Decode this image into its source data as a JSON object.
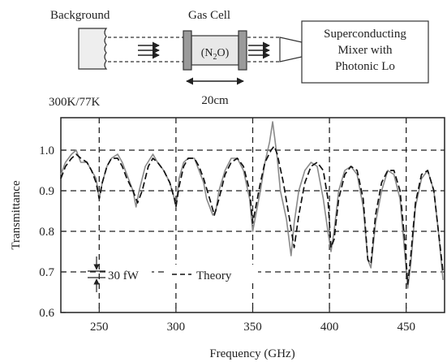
{
  "diagram": {
    "background_label": "Background",
    "background_temp": "300K/77K",
    "gas_cell_label": "Gas Cell",
    "gas_cell_content_main": "(N",
    "gas_cell_content_sub": "2",
    "gas_cell_content_end": "O)",
    "cell_length": "20cm",
    "mixer_line1": "Superconducting",
    "mixer_line2": "Mixer with",
    "mixer_line3": "Photonic Lo"
  },
  "chart_data": {
    "type": "line",
    "xlabel": "Frequency (GHz)",
    "ylabel": "Transmittance",
    "xlim": [
      225,
      475
    ],
    "ylim": [
      0.6,
      1.08
    ],
    "x_ticks": [
      250,
      300,
      350,
      400,
      450
    ],
    "y_ticks": [
      0.6,
      0.7,
      0.8,
      0.9,
      1.0
    ],
    "x_tick_labels": [
      "250",
      "300",
      "350",
      "400",
      "450"
    ],
    "y_tick_labels": [
      "0.6",
      "0.7",
      "0.8",
      "0.9",
      "1.0"
    ],
    "grid": "dashed",
    "scale_bar_label": "30 fW",
    "legend_theory": "Theory",
    "series": [
      {
        "style": "solid-gray",
        "x": [
          225,
          228,
          232,
          235,
          238,
          242,
          245,
          248,
          250,
          252,
          255,
          258,
          262,
          265,
          268,
          272,
          274,
          276,
          280,
          285,
          288,
          292,
          296,
          299,
          300,
          302,
          305,
          308,
          312,
          315,
          318,
          320,
          324,
          326,
          328,
          332,
          336,
          340,
          344,
          348,
          350,
          352,
          355,
          358,
          361,
          363,
          364,
          366,
          368,
          372,
          375,
          377,
          380,
          384,
          388,
          392,
          396,
          399,
          401,
          403,
          406,
          410,
          414,
          418,
          422,
          425,
          427,
          430,
          434,
          438,
          442,
          446,
          449,
          451,
          453,
          456,
          460,
          464,
          468,
          471,
          474
        ],
        "y": [
          0.94,
          0.97,
          0.99,
          1.0,
          0.97,
          0.97,
          0.95,
          0.93,
          0.88,
          0.92,
          0.96,
          0.98,
          0.99,
          0.97,
          0.94,
          0.9,
          0.86,
          0.9,
          0.96,
          0.99,
          0.97,
          0.95,
          0.92,
          0.88,
          0.86,
          0.93,
          0.97,
          0.98,
          0.98,
          0.95,
          0.92,
          0.88,
          0.84,
          0.85,
          0.9,
          0.95,
          0.98,
          0.98,
          0.95,
          0.88,
          0.8,
          0.84,
          0.9,
          0.97,
          1.02,
          1.07,
          1.04,
          0.98,
          0.9,
          0.83,
          0.74,
          0.82,
          0.9,
          0.95,
          0.97,
          0.96,
          0.88,
          0.8,
          0.75,
          0.8,
          0.9,
          0.95,
          0.96,
          0.94,
          0.86,
          0.73,
          0.71,
          0.82,
          0.9,
          0.95,
          0.94,
          0.88,
          0.75,
          0.66,
          0.72,
          0.86,
          0.93,
          0.95,
          0.9,
          0.8,
          0.68
        ]
      },
      {
        "style": "dashed-black",
        "x": [
          225,
          228,
          232,
          235,
          238,
          242,
          245,
          248,
          250,
          252,
          255,
          258,
          262,
          265,
          268,
          272,
          275,
          278,
          282,
          285,
          288,
          292,
          296,
          299,
          300,
          302,
          305,
          308,
          312,
          315,
          318,
          322,
          325,
          328,
          332,
          336,
          340,
          344,
          348,
          350,
          352,
          355,
          358,
          362,
          364,
          366,
          370,
          374,
          377,
          380,
          384,
          388,
          392,
          396,
          399,
          401,
          403,
          406,
          410,
          414,
          418,
          422,
          425,
          427,
          430,
          434,
          438,
          442,
          446,
          449,
          451,
          453,
          456,
          460,
          464,
          468,
          471,
          474
        ],
        "y": [
          0.93,
          0.96,
          0.98,
          0.99,
          0.98,
          0.97,
          0.95,
          0.92,
          0.88,
          0.92,
          0.96,
          0.98,
          0.98,
          0.96,
          0.93,
          0.9,
          0.87,
          0.9,
          0.96,
          0.98,
          0.97,
          0.95,
          0.92,
          0.88,
          0.86,
          0.91,
          0.96,
          0.98,
          0.98,
          0.96,
          0.93,
          0.88,
          0.84,
          0.88,
          0.94,
          0.97,
          0.98,
          0.96,
          0.9,
          0.82,
          0.86,
          0.92,
          0.97,
          1.0,
          1.01,
          0.99,
          0.92,
          0.83,
          0.76,
          0.84,
          0.92,
          0.96,
          0.97,
          0.95,
          0.88,
          0.76,
          0.78,
          0.88,
          0.94,
          0.96,
          0.95,
          0.88,
          0.73,
          0.72,
          0.84,
          0.92,
          0.95,
          0.95,
          0.9,
          0.78,
          0.67,
          0.74,
          0.87,
          0.94,
          0.95,
          0.9,
          0.8,
          0.7
        ]
      }
    ]
  }
}
